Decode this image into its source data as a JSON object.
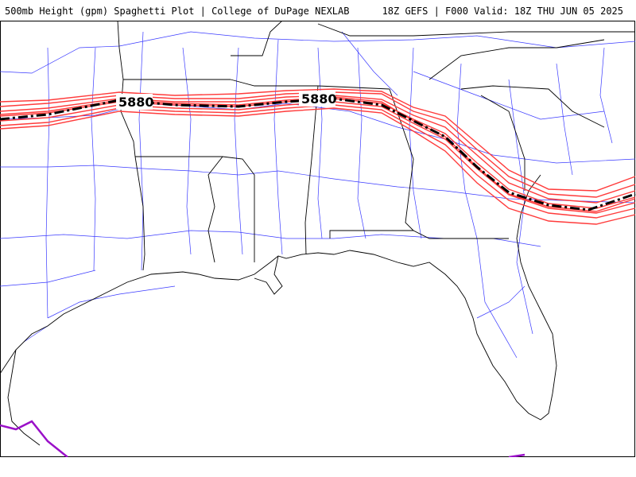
{
  "header": {
    "title_left": "500mb Height (gpm) Spaghetti Plot | College of DuPage NEXLAB",
    "title_right": "18Z GEFS | F000 Valid: 18Z THU JUN 05 2025"
  },
  "map": {
    "contour_labels": [
      "5880",
      "5880"
    ],
    "colors": {
      "background": "#ffffff",
      "coastline": "#000000",
      "state_borders": "#000000",
      "highways": "#3a3aff",
      "ensemble_members": "#ff3b3b",
      "ensemble_mean": "#000000",
      "secondary_contour": "#9a10c8"
    }
  }
}
